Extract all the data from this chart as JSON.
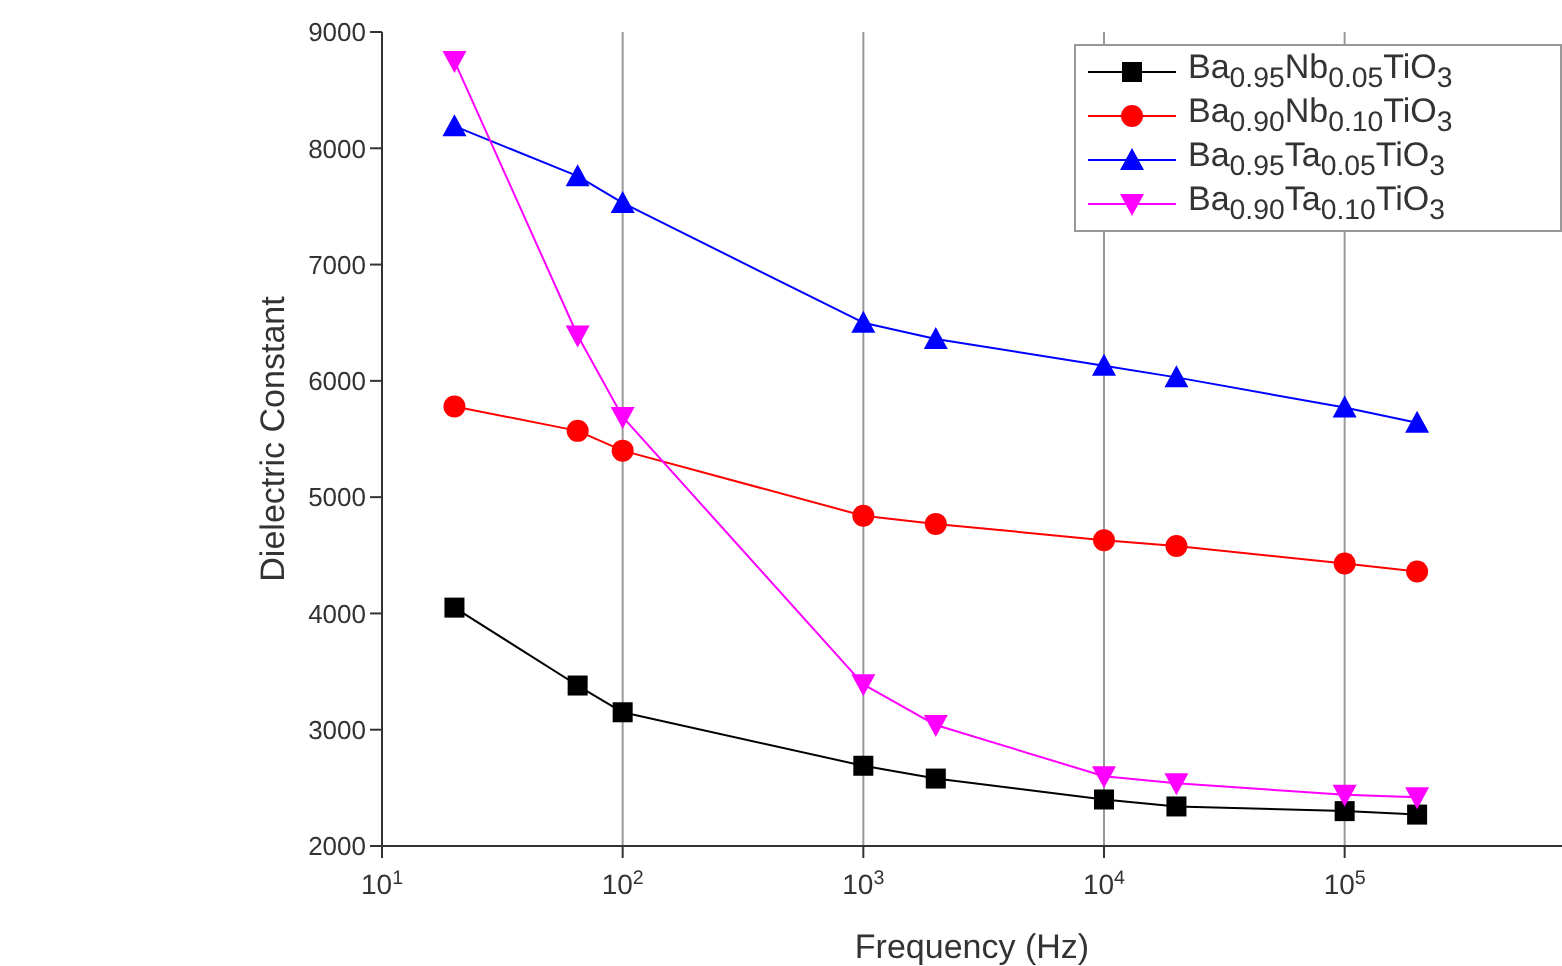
{
  "chart_data": {
    "type": "line",
    "xlabel": "Frequency (Hz)",
    "ylabel": "Dielectric Constant",
    "log": "x",
    "x": [
      20,
      65,
      100,
      1000,
      2000,
      10000,
      20000,
      100000,
      200000
    ],
    "series": [
      {
        "name": "Ba$_{0.95}$Nb$_{0.05}$TiO$_{3}$",
        "color": "#000000",
        "marker": "square",
        "values": [
          4050,
          3380,
          3150,
          2690,
          2580,
          2400,
          2340,
          2300,
          2270
        ]
      },
      {
        "name": "Ba$_{0.90}$Nb$_{0.10}$TiO$_{3}$",
        "color": "#ff0000",
        "marker": "circle",
        "values": [
          5780,
          5570,
          5400,
          4840,
          4770,
          4630,
          4580,
          4430,
          4360
        ]
      },
      {
        "name": "Ba$_{0.95}$Ta$_{0.05}$TiO$_{3}$",
        "color": "#0000ff",
        "marker": "triangle",
        "values": [
          8190,
          7760,
          7530,
          6500,
          6360,
          6130,
          6030,
          5770,
          5640
        ]
      },
      {
        "name": "Ba$_{0.90}$Ta$_{0.10}$TiO$_{3}$",
        "color": "#ff00ff",
        "marker": "triangle-down",
        "values": [
          8750,
          6390,
          5690,
          3390,
          3040,
          2600,
          2540,
          2440,
          2420
        ]
      }
    ],
    "xlim": [
      10,
      800000
    ],
    "xticks": [
      {
        "value": 10,
        "label": "10$^{1}$"
      },
      {
        "value": 100,
        "label": "10$^{2}$"
      },
      {
        "value": 1000,
        "label": "10$^{3}$"
      },
      {
        "value": 10000,
        "label": "10$^{4}$"
      },
      {
        "value": 100000,
        "label": "10$^{5}$"
      }
    ],
    "ylim": [
      2000,
      9000
    ],
    "yticks": [
      2000,
      3000,
      4000,
      5000,
      6000,
      7000,
      8000,
      9000
    ],
    "grid": "x",
    "legend": "top right",
    "line_style": "solid"
  }
}
